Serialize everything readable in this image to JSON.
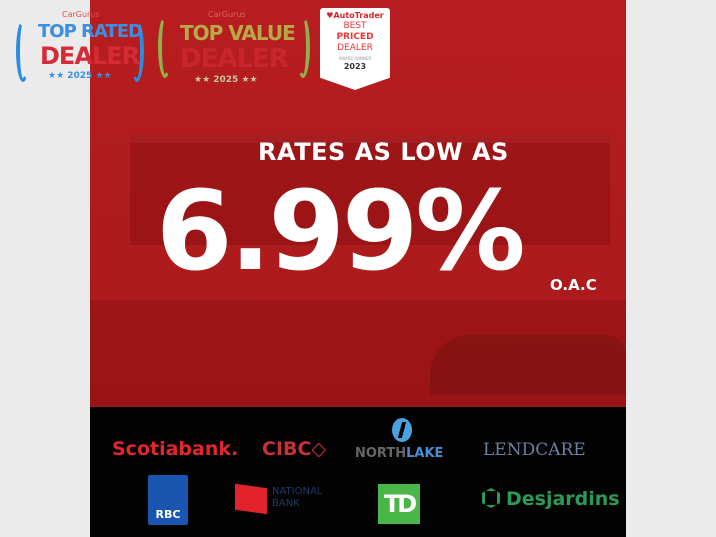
{
  "badges": {
    "cargurus_top_rated": {
      "brand": "CarGurus",
      "line1": "TOP RATED",
      "line2": "DEALER",
      "year": "★★ 2025 ★★"
    },
    "cargurus_top_value": {
      "brand": "CarGurus",
      "line1": "TOP VALUE",
      "line2": "DEALER",
      "year": "★★ 2025 ★★"
    },
    "autotrader": {
      "brand": "♥AutoTrader",
      "line1": "BEST",
      "line2": "PRICED",
      "line3": "DEALER",
      "award": "AWARD WINNER",
      "year": "2023"
    }
  },
  "promo": {
    "headline": "RATES AS LOW AS",
    "rate": "6.99%",
    "note": "O.A.C"
  },
  "lenders": {
    "scotiabank": "Scotiabank.",
    "cibc": "CIBC◇",
    "northlake_a": "NORTH",
    "northlake_b": "LAKE",
    "lendcare": "LENDCARE",
    "rbc": "RBC",
    "national_1": "NATIONAL",
    "national_2": "BANK",
    "td": "TD",
    "desjardins": "Desjardins"
  },
  "colors": {
    "panel": "#b01c1e",
    "footer": "#030303",
    "accent": "#ffffff"
  }
}
